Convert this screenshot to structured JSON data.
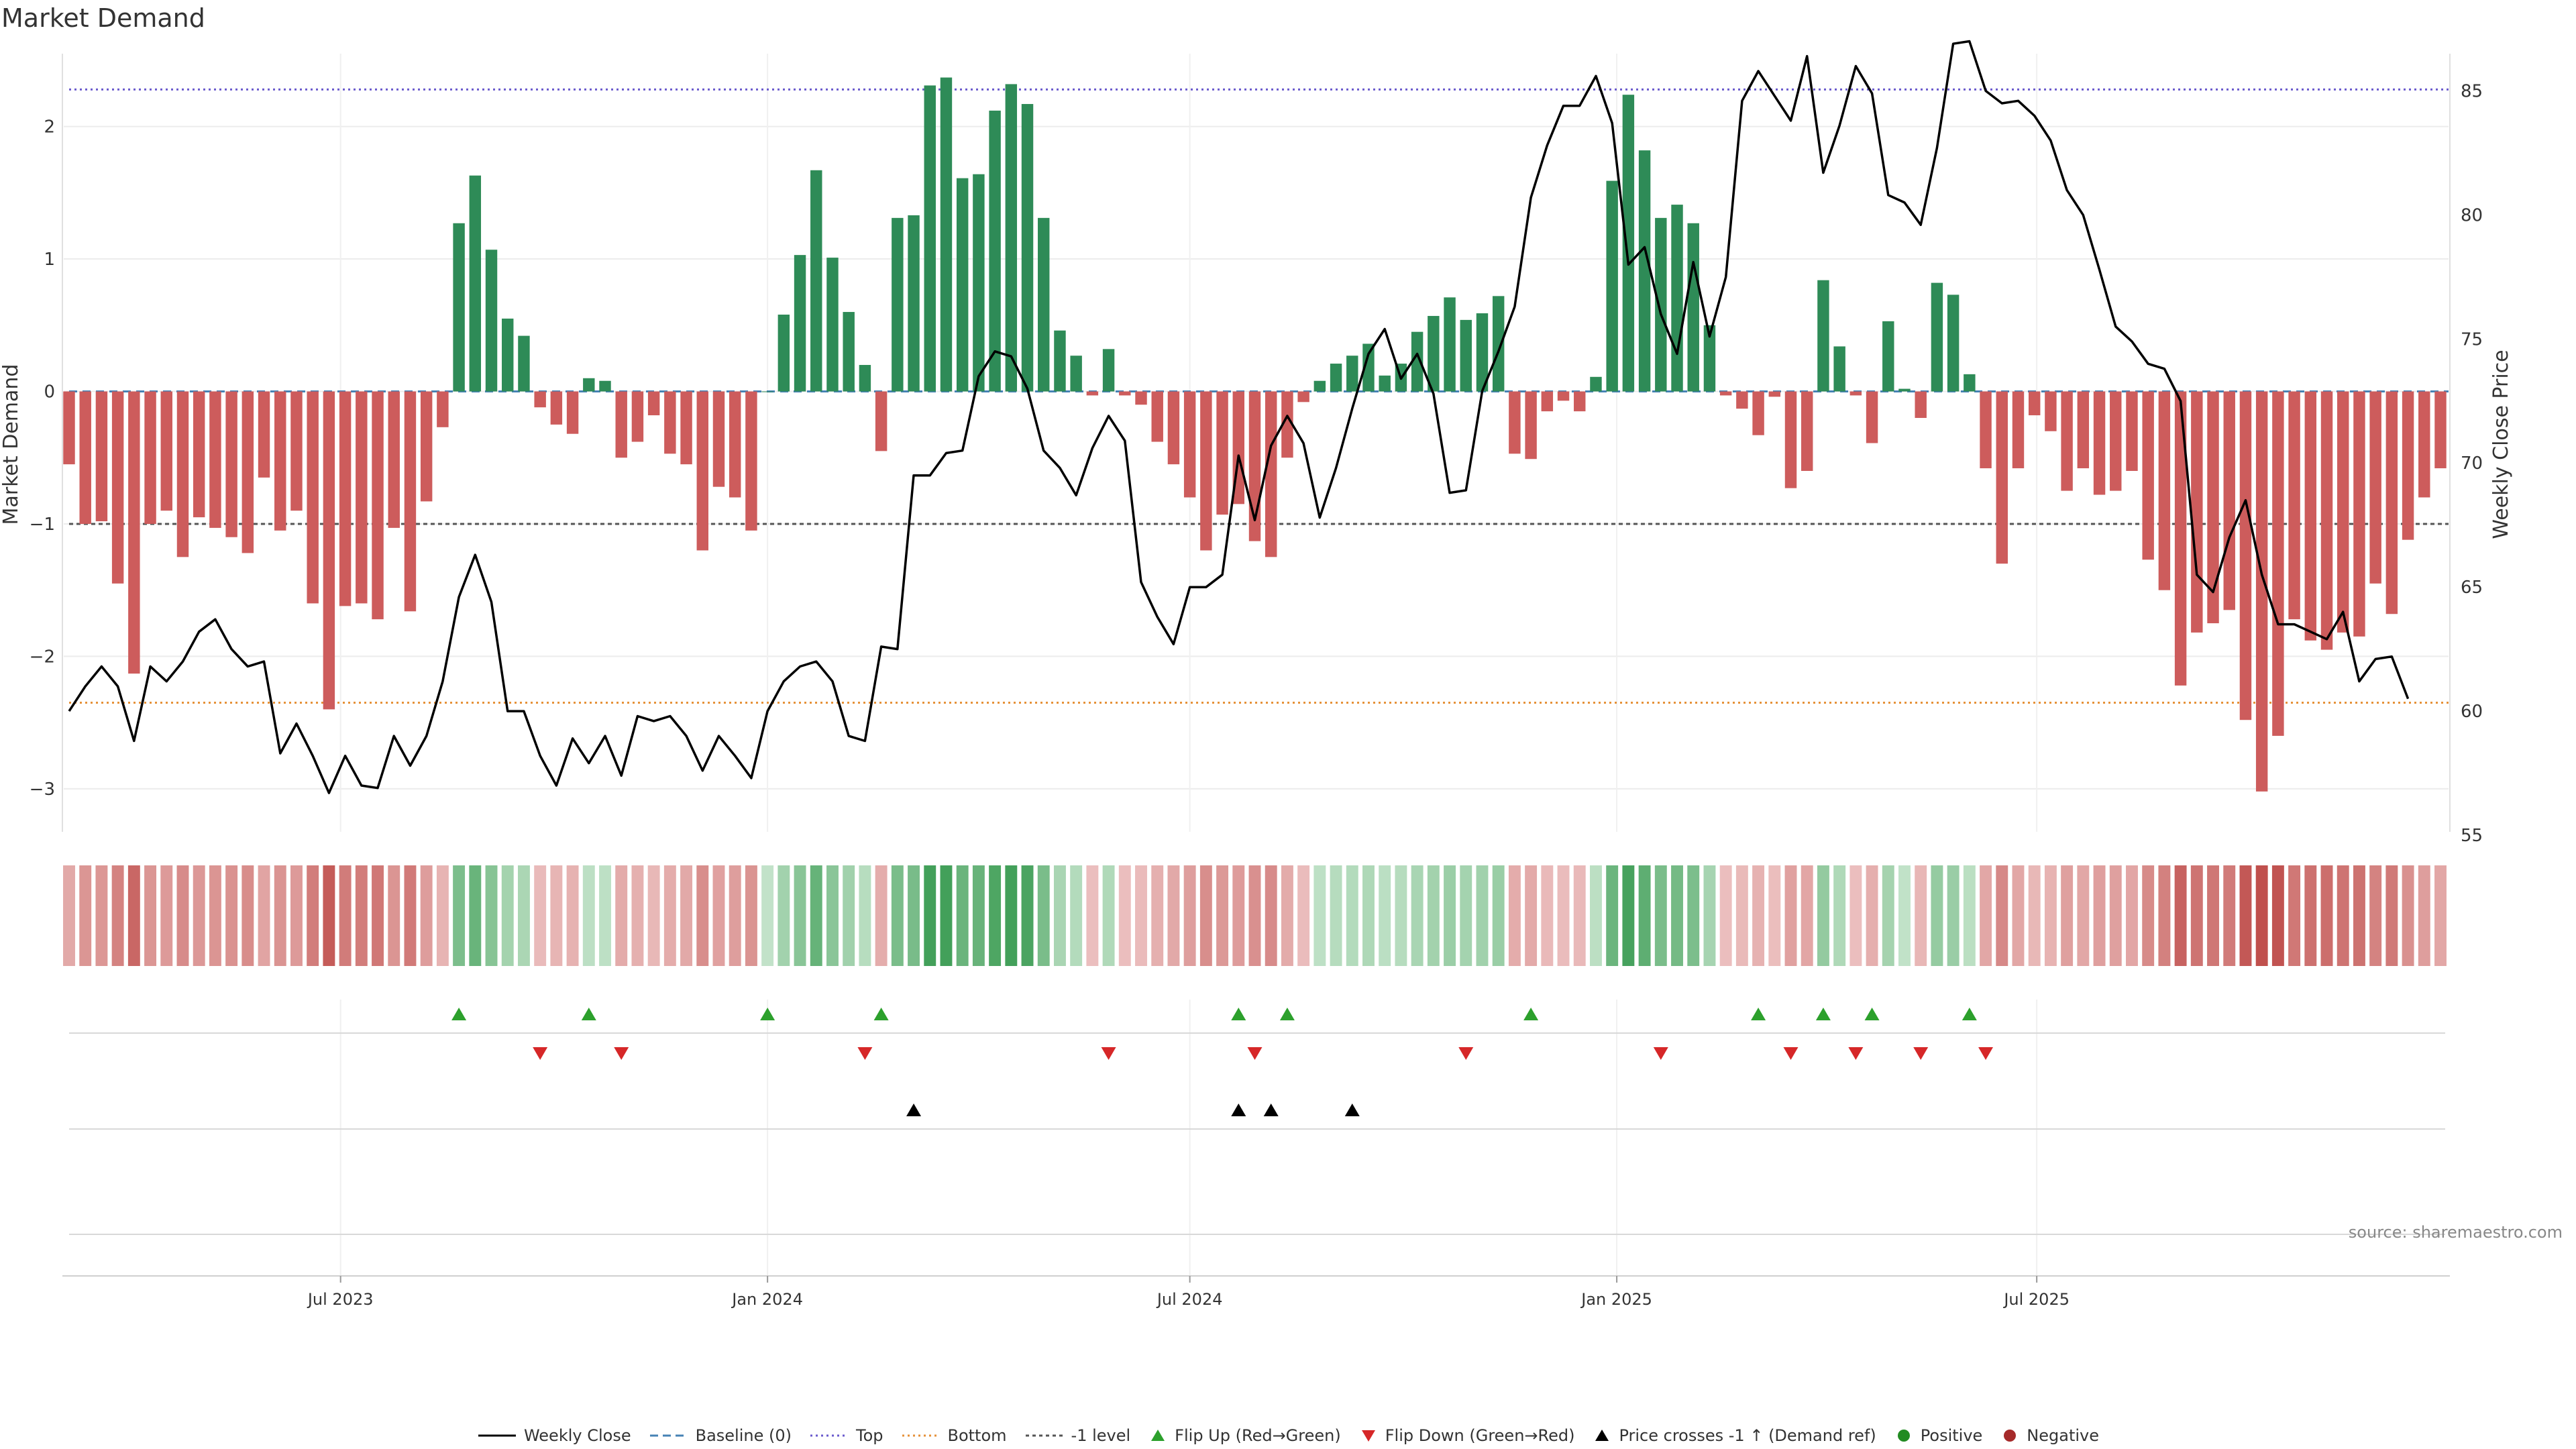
{
  "title": "Market Demand",
  "source": "source: sharemaestro.com",
  "colors": {
    "green": "#2e8b57",
    "red": "#cd5c5c",
    "price": "#000000",
    "top": "#6a5acd",
    "bottom": "#e69138",
    "neg1": "#555555",
    "baseline": "#4682b4",
    "flip_up": "#2ca02c",
    "flip_down": "#d62728",
    "cross": "#000000",
    "positive": "#228b22",
    "negative": "#a52a2a"
  },
  "chart_data": {
    "type": "bar",
    "x_start_week": "2023-03-06",
    "x_ticks": [
      "Jul 2023",
      "Jan 2024",
      "Jul 2024",
      "Jan 2025",
      "Jul 2025"
    ],
    "x_tick_dates": [
      "2023-07-01",
      "2024-01-01",
      "2024-07-01",
      "2025-01-01",
      "2025-07-01"
    ],
    "left_axis": {
      "label": "Market Demand",
      "ylim": [
        -3.35,
        2.55
      ],
      "ticks": [
        -3,
        -2,
        -1,
        0,
        1,
        2
      ]
    },
    "right_axis": {
      "label": "Weekly Close Price",
      "ylim": [
        55,
        86.5
      ],
      "ticks": [
        55,
        60,
        65,
        70,
        75,
        80,
        85
      ]
    },
    "levels": {
      "top": 2.28,
      "bottom": -2.35,
      "minus_one": -1.0,
      "baseline": 0
    },
    "demand": [
      -0.55,
      -1.0,
      -0.98,
      -1.45,
      -2.13,
      -1.0,
      -0.9,
      -1.25,
      -0.95,
      -1.03,
      -1.1,
      -1.22,
      -0.65,
      -1.05,
      -0.9,
      -1.6,
      -2.4,
      -1.62,
      -1.6,
      -1.72,
      -1.03,
      -1.66,
      -0.83,
      -0.27,
      1.27,
      1.63,
      1.07,
      0.55,
      0.42,
      -0.12,
      -0.25,
      -0.32,
      0.1,
      0.08,
      -0.5,
      -0.38,
      -0.18,
      -0.47,
      -0.55,
      -1.2,
      -0.72,
      -0.8,
      -1.05,
      0.0,
      0.58,
      1.03,
      1.67,
      1.01,
      0.6,
      0.2,
      -0.45,
      1.31,
      1.33,
      2.31,
      2.37,
      1.61,
      1.64,
      2.12,
      2.32,
      2.17,
      1.31,
      0.46,
      0.27,
      -0.03,
      0.32,
      -0.03,
      -0.1,
      -0.38,
      -0.55,
      -0.8,
      -1.2,
      -0.93,
      -0.85,
      -1.13,
      -1.25,
      -0.5,
      -0.08,
      0.08,
      0.21,
      0.27,
      0.36,
      0.12,
      0.21,
      0.45,
      0.57,
      0.71,
      0.54,
      0.59,
      0.72,
      -0.47,
      -0.51,
      -0.15,
      -0.07,
      -0.15,
      0.11,
      1.59,
      2.24,
      1.82,
      1.31,
      1.41,
      1.27,
      0.5,
      -0.03,
      -0.13,
      -0.33,
      -0.04,
      -0.73,
      -0.6,
      0.84,
      0.34,
      -0.03,
      -0.39,
      0.53,
      0.02,
      -0.2,
      0.82,
      0.73,
      0.13,
      -0.58,
      -1.3,
      -0.58,
      -0.18,
      -0.3,
      -0.75,
      -0.58,
      -0.78,
      -0.75,
      -0.6,
      -1.27,
      -1.5,
      -2.22,
      -1.82,
      -1.75,
      -1.65,
      -2.48,
      -3.02,
      -2.6,
      -1.72,
      -1.88,
      -1.95,
      -1.82,
      -1.85,
      -1.45,
      -1.68,
      -1.12,
      -0.8,
      -0.58
    ],
    "price": [
      60.0,
      61.0,
      61.8,
      61.0,
      58.8,
      61.8,
      61.2,
      62.0,
      63.2,
      63.7,
      62.5,
      61.8,
      62.0,
      58.3,
      59.5,
      58.2,
      56.7,
      58.2,
      57.0,
      56.9,
      59.0,
      57.8,
      59.0,
      61.2,
      64.6,
      66.3,
      64.4,
      60.0,
      60.0,
      58.2,
      57.0,
      58.9,
      57.9,
      59.0,
      57.4,
      59.8,
      59.6,
      59.8,
      59.0,
      57.6,
      59.0,
      58.2,
      57.3,
      60.0,
      61.2,
      61.8,
      62.0,
      61.2,
      59.0,
      58.8,
      62.6,
      62.5,
      69.5,
      69.5,
      70.4,
      70.5,
      73.5,
      74.5,
      74.3,
      73.0,
      70.5,
      69.8,
      68.7,
      70.6,
      71.9,
      70.9,
      65.2,
      63.8,
      62.7,
      65.0,
      65.0,
      65.5,
      70.3,
      67.7,
      70.7,
      71.9,
      70.8,
      67.8,
      69.8,
      72.2,
      74.4,
      75.4,
      73.4,
      74.4,
      72.8,
      68.8,
      68.9,
      72.9,
      74.5,
      76.3,
      80.7,
      82.8,
      84.4,
      84.4,
      85.6,
      83.7,
      78.0,
      78.7,
      76.0,
      74.4,
      78.1,
      75.1,
      77.5,
      84.6,
      85.8,
      84.8,
      83.8,
      86.4,
      81.7,
      83.6,
      86.0,
      84.9,
      80.8,
      80.5,
      79.6,
      82.7,
      86.9,
      87.0,
      85.0,
      84.5,
      84.6,
      84.0,
      83.0,
      81.0,
      80.0,
      77.8,
      75.5,
      74.9,
      74.0,
      73.8,
      72.5,
      65.5,
      64.8,
      67.0,
      68.5,
      65.5,
      63.5,
      63.5,
      63.2,
      62.9,
      64.0,
      61.2,
      62.1,
      62.2,
      60.5
    ],
    "flip_up_weeks": [
      24,
      32,
      43,
      50,
      72,
      75,
      90,
      104,
      108,
      111,
      117
    ],
    "flip_down_weeks": [
      29,
      34,
      49,
      64,
      73,
      86,
      98,
      106,
      110,
      114,
      118
    ],
    "cross_weeks": [
      52,
      72,
      74,
      79
    ]
  },
  "legend": [
    {
      "label": "Weekly Close",
      "kind": "line"
    },
    {
      "label": "Baseline (0)",
      "kind": "dash"
    },
    {
      "label": "Top",
      "kind": "dot-top"
    },
    {
      "label": "Bottom",
      "kind": "dot-bottom"
    },
    {
      "label": "-1 level",
      "kind": "dot-neg"
    },
    {
      "label": "Flip Up (Red→Green)",
      "kind": "tri-up-green"
    },
    {
      "label": "Flip Down (Green→Red)",
      "kind": "tri-down-red"
    },
    {
      "label": "Price crosses -1 ↑ (Demand ref)",
      "kind": "tri-up-black"
    },
    {
      "label": "Positive",
      "kind": "dot-green"
    },
    {
      "label": "Negative",
      "kind": "dot-red"
    }
  ]
}
